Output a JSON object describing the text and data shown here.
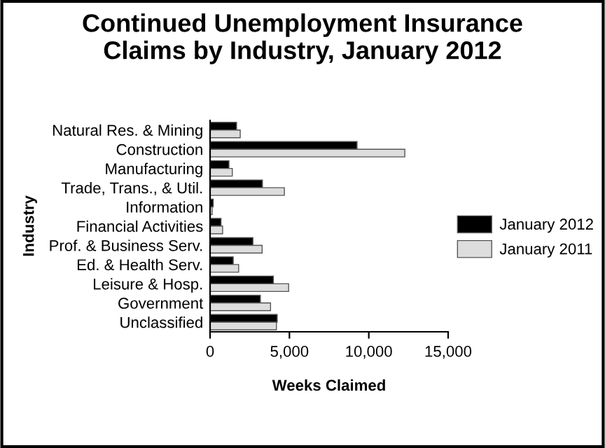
{
  "chart_data": {
    "type": "bar",
    "orientation": "horizontal",
    "title": "Continued Unemployment Insurance\nClaims by Industry, January 2012",
    "xlabel": "Weeks Claimed",
    "ylabel": "Industry",
    "categories": [
      "Natural Res. & Mining",
      "Construction",
      "Manufacturing",
      "Trade, Trans., & Util.",
      "Information",
      "Financial Activities",
      "Prof. & Business Serv.",
      "Ed. & Health Serv.",
      "Leisure & Hosp.",
      "Government",
      "Unclassified"
    ],
    "series": [
      {
        "name": "January 2012",
        "color": "#000000",
        "values": [
          1670,
          9260,
          1190,
          3300,
          200,
          690,
          2700,
          1460,
          3990,
          3170,
          4230
        ]
      },
      {
        "name": "January 2011",
        "color": "#dddddd",
        "values": [
          1900,
          12270,
          1400,
          4680,
          130,
          790,
          3280,
          1800,
          4950,
          3810,
          4180
        ]
      }
    ],
    "xlim": [
      0,
      15000
    ],
    "xticks": [
      {
        "value": 0,
        "label": "0"
      },
      {
        "value": 5000,
        "label": "5,000"
      },
      {
        "value": 10000,
        "label": "10,000"
      },
      {
        "value": 15000,
        "label": "15,000"
      }
    ],
    "grid": false,
    "legend": "right"
  }
}
